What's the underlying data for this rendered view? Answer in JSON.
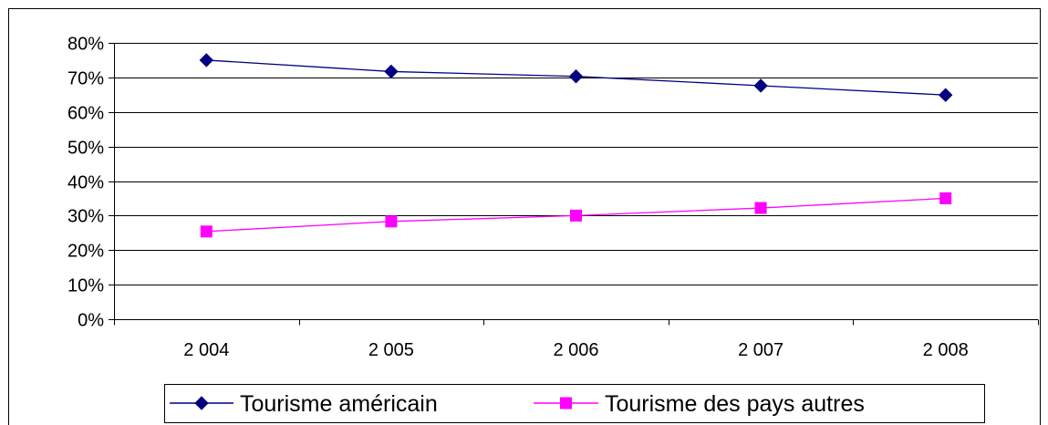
{
  "chart_data": {
    "type": "line",
    "title": "",
    "xlabel": "",
    "ylabel": "",
    "categories": [
      "2 004",
      "2 005",
      "2 006",
      "2 007",
      "2 008"
    ],
    "ylim": [
      0,
      80
    ],
    "y_ticks": [
      0,
      10,
      20,
      30,
      40,
      50,
      60,
      70,
      80
    ],
    "y_tick_labels": [
      "0%",
      "10%",
      "20%",
      "30%",
      "40%",
      "50%",
      "60%",
      "70%",
      "80%"
    ],
    "grid": "horizontal",
    "legend_position": "bottom",
    "series": [
      {
        "name": "Tourisme américain",
        "values": [
          75,
          71.7,
          70.3,
          67.6,
          64.9
        ],
        "color": "#000080",
        "marker": "diamond"
      },
      {
        "name": "Tourisme des pays autres",
        "values": [
          25.4,
          28.3,
          30,
          32.2,
          35
        ],
        "color": "#ff00ff",
        "marker": "square"
      }
    ]
  }
}
